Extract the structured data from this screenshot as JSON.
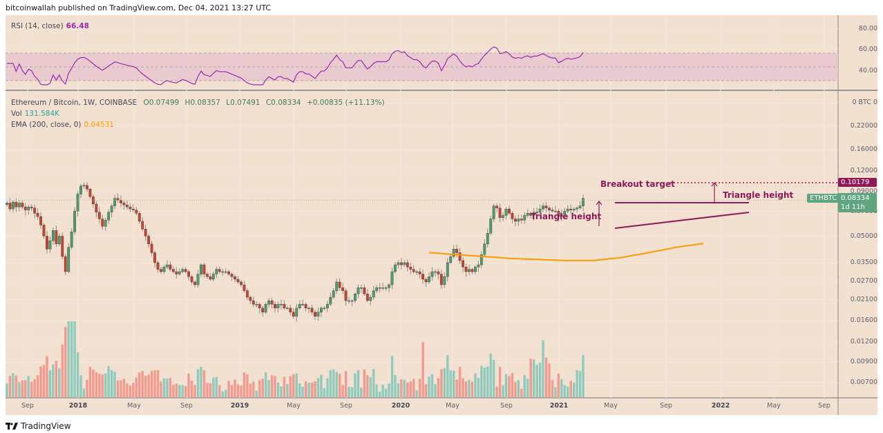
{
  "header": {
    "published": "bitcoinwallah published on TradingView.com, Dec 04, 2021 13:27 UTC"
  },
  "rsi_panel": {
    "label": "RSI (14, close)",
    "value": "66.48",
    "value_color": "#9c27b0",
    "axis": [
      "80.00",
      "60.00",
      "40.00"
    ]
  },
  "main_panel": {
    "symbol_line": "Ethereum / Bitcoin, 1W, COINBASE",
    "open": "O0.07499",
    "high": "H0.08357",
    "low": "L0.07491",
    "close": "C0.08334",
    "change": "+0.00835 (+11.13%)",
    "vol_label": "Vol",
    "vol_value": "131.584K",
    "ema_label": "EMA (200, close, 0)",
    "ema_value": "0.04531",
    "axis_currency": "0 BTC 0",
    "axis": [
      "0.22000",
      "0.16000",
      "0.12000",
      "0.09000",
      "0.07000",
      "0.05000",
      "0.03500",
      "0.02700",
      "0.02100",
      "0.01600",
      "0.01200",
      "0.00900",
      "0.00700"
    ],
    "breakout_tag": "0.10179",
    "price_tag": "0.08334",
    "countdown": "1d 11h",
    "symbol_tag": "ETHBTC"
  },
  "annotations": {
    "breakout_target": "Breakout target",
    "triangle_height_left": "Triangle height",
    "triangle_height_right": "Triangle height"
  },
  "time_axis": [
    "Sep",
    "2018",
    "May",
    "Sep",
    "2019",
    "May",
    "Sep",
    "2020",
    "May",
    "Sep",
    "2021",
    "May",
    "Sep",
    "2022",
    "May",
    "Sep"
  ],
  "footer": {
    "brand": "TradingView"
  },
  "colors": {
    "background": "#f2e0d0",
    "up": "#26a69a",
    "down": "#ef5350",
    "candle_up": "#4c9e6c",
    "candle_down": "#c8432f",
    "ema": "#ff9800",
    "rsi": "#9c27b0",
    "annotation": "#8e1a5a",
    "price_tag": "#5fa57e"
  },
  "chart_data": {
    "type": "candlestick",
    "title": "Ethereum / Bitcoin, 1W, COINBASE",
    "xlabel": "",
    "ylabel": "BTC",
    "yscale": "log",
    "ylim": [
      0.0065,
      0.26
    ],
    "x_ticks": [
      "Sep 2017",
      "2018",
      "May 2018",
      "Sep 2018",
      "2019",
      "May 2019",
      "Sep 2019",
      "2020",
      "May 2020",
      "Sep 2020",
      "2021",
      "May 2021",
      "Sep 2021",
      "2022",
      "May 2022",
      "Sep 2022"
    ],
    "weekly_close_approx": [
      0.078,
      0.072,
      0.079,
      0.074,
      0.078,
      0.074,
      0.071,
      0.074,
      0.073,
      0.068,
      0.065,
      0.058,
      0.05,
      0.042,
      0.047,
      0.054,
      0.045,
      0.05,
      0.038,
      0.031,
      0.043,
      0.053,
      0.07,
      0.088,
      0.098,
      0.099,
      0.094,
      0.085,
      0.077,
      0.069,
      0.063,
      0.057,
      0.062,
      0.069,
      0.075,
      0.083,
      0.081,
      0.078,
      0.076,
      0.074,
      0.072,
      0.071,
      0.068,
      0.061,
      0.055,
      0.05,
      0.045,
      0.04,
      0.035,
      0.032,
      0.031,
      0.033,
      0.034,
      0.032,
      0.031,
      0.03,
      0.031,
      0.032,
      0.031,
      0.029,
      0.027,
      0.026,
      0.03,
      0.034,
      0.03,
      0.029,
      0.028,
      0.03,
      0.032,
      0.031,
      0.031,
      0.031,
      0.03,
      0.029,
      0.028,
      0.027,
      0.026,
      0.024,
      0.022,
      0.021,
      0.02,
      0.02,
      0.019,
      0.018,
      0.02,
      0.021,
      0.02,
      0.019,
      0.02,
      0.02,
      0.019,
      0.019,
      0.018,
      0.017,
      0.019,
      0.02,
      0.02,
      0.019,
      0.019,
      0.018,
      0.017,
      0.018,
      0.019,
      0.019,
      0.02,
      0.022,
      0.024,
      0.027,
      0.025,
      0.024,
      0.021,
      0.021,
      0.021,
      0.023,
      0.025,
      0.025,
      0.023,
      0.021,
      0.022,
      0.024,
      0.025,
      0.025,
      0.025,
      0.025,
      0.026,
      0.031,
      0.034,
      0.035,
      0.034,
      0.035,
      0.033,
      0.032,
      0.031,
      0.031,
      0.03,
      0.028,
      0.027,
      0.029,
      0.031,
      0.031,
      0.03,
      0.026,
      0.029,
      0.035,
      0.038,
      0.042,
      0.04,
      0.036,
      0.033,
      0.031,
      0.032,
      0.031,
      0.033,
      0.034,
      0.039,
      0.045,
      0.052,
      0.063,
      0.075,
      0.073,
      0.064,
      0.066,
      0.072,
      0.068,
      0.063,
      0.061,
      0.063,
      0.062,
      0.066,
      0.068,
      0.066,
      0.069,
      0.069,
      0.072,
      0.075,
      0.073,
      0.071,
      0.07,
      0.07,
      0.065,
      0.067,
      0.07,
      0.072,
      0.071,
      0.072,
      0.073,
      0.075,
      0.083
    ],
    "ema200": {
      "start": "Apr 2020",
      "values_approx": [
        0.04,
        0.039,
        0.038,
        0.037,
        0.0365,
        0.036,
        0.036,
        0.0375,
        0.04,
        0.043,
        0.0453
      ]
    },
    "triangle": {
      "resistance": 0.0775,
      "support_start": 0.058,
      "support_end": 0.07
    },
    "breakout_target": 0.10179,
    "last_price": 0.08334,
    "volume_note": "weekly volume bars, up=teal, down=salmon, peaks Jan 2018, Mar 2020, Jan 2021, May 2021",
    "rsi": {
      "overbought": 70,
      "oversold": 30,
      "last": 66.48
    }
  }
}
